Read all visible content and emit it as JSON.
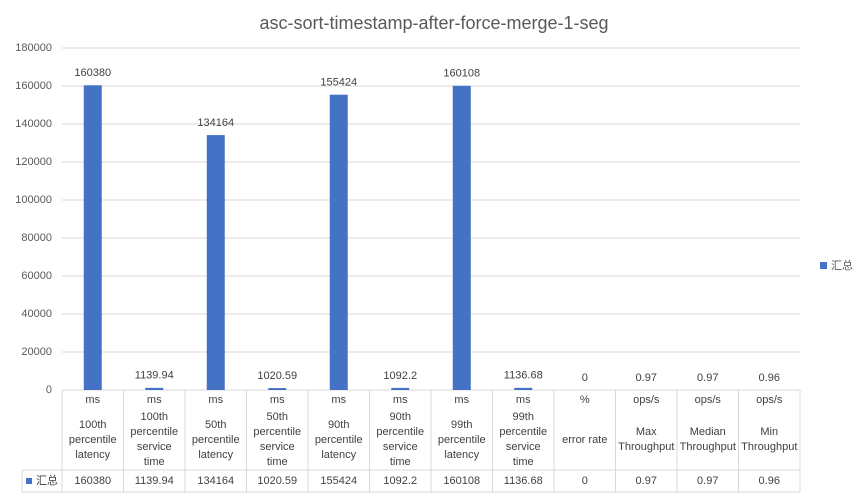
{
  "chart_data": {
    "type": "bar",
    "title": "asc-sort-timestamp-after-force-merge-1-seg",
    "categories": [
      "100th percentile latency",
      "100th percentile service time",
      "50th percentile latency",
      "50th percentile service time",
      "90th percentile latency",
      "90th percentile service time",
      "99th percentile latency",
      "99th percentile service time",
      "error rate",
      "Max Throughput",
      "Median Throughput",
      "Min Throughput"
    ],
    "units": [
      "ms",
      "ms",
      "ms",
      "ms",
      "ms",
      "ms",
      "ms",
      "ms",
      "%",
      "ops/s",
      "ops/s",
      "ops/s"
    ],
    "series": [
      {
        "name": "汇总",
        "color": "#4472c4",
        "values": [
          160380,
          1139.94,
          134164,
          1020.59,
          155424,
          1092.2,
          160108,
          1136.68,
          0,
          0.97,
          0.97,
          0.96
        ]
      }
    ],
    "ylim": [
      0,
      180000
    ],
    "yticks": [
      0,
      20000,
      40000,
      60000,
      80000,
      100000,
      120000,
      140000,
      160000,
      180000
    ],
    "grid": true,
    "legend": "right",
    "data_table": true
  }
}
